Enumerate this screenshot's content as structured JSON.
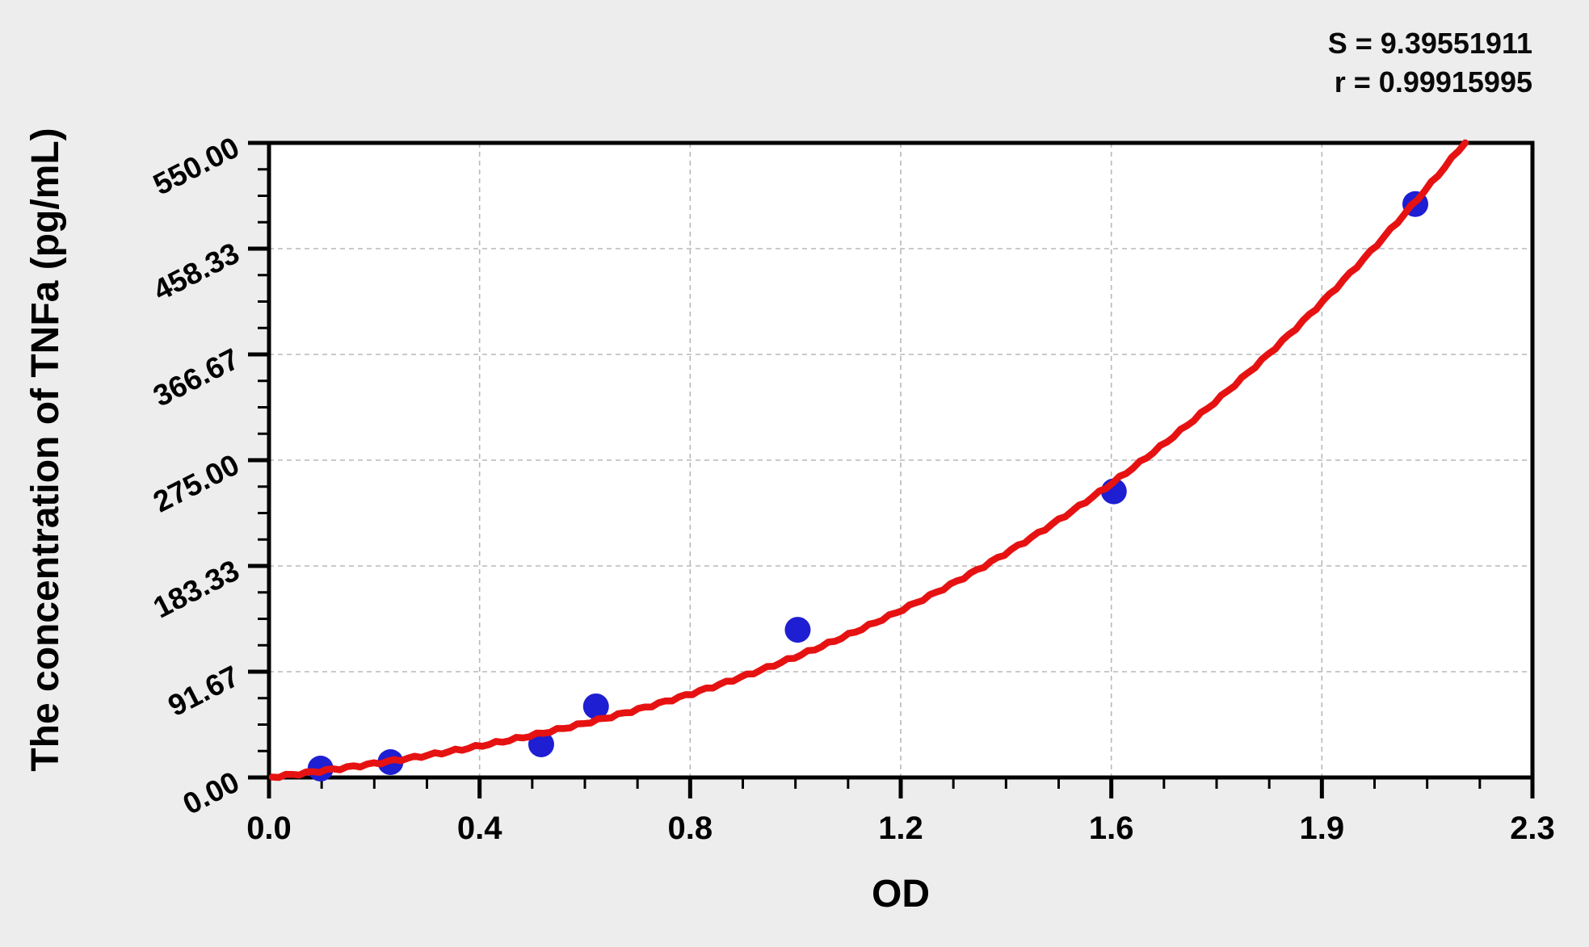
{
  "page": {
    "background": "#ededed"
  },
  "stats": {
    "s": "S = 9.39551911",
    "r": "r = 0.99915995"
  },
  "chart_data": {
    "type": "scatter",
    "title": "",
    "xlabel": "OD",
    "ylabel": "The concentration of TNFa (pg/mL)",
    "xlim": [
      0,
      2.33
    ],
    "ylim": [
      0,
      550
    ],
    "x_tick_labels": [
      "0.0",
      "0.4",
      "0.8",
      "1.2",
      "1.6",
      "1.9",
      "2.3"
    ],
    "y_tick_labels": [
      "0.00",
      "91.67",
      "183.33",
      "275.00",
      "366.67",
      "458.33",
      "550.00"
    ],
    "minor_ticks_between_majors": 3,
    "grid": "dashed gray lines at interior major ticks",
    "legend": "none",
    "points": [
      {
        "od": 0.095,
        "concentration": 7.7
      },
      {
        "od": 0.224,
        "concentration": 13.3
      },
      {
        "od": 0.502,
        "concentration": 28.7
      },
      {
        "od": 0.603,
        "concentration": 61.6
      },
      {
        "od": 0.975,
        "concentration": 128
      },
      {
        "od": 1.558,
        "concentration": 248
      },
      {
        "od": 2.114,
        "concentration": 497
      }
    ],
    "fit_curve": {
      "model": "concentration = 56*OD + 26*OD^2 + 28*OD^3",
      "a": 56,
      "b": 26,
      "c": 28,
      "od_range": [
        0.006,
        2.215
      ]
    },
    "colors": {
      "point": "#1e1ed2",
      "curve": "#e61212",
      "grid": "#b8b8b8",
      "axis": "#000000",
      "plot_background": "#ffffff",
      "page_background": "#ededed",
      "text": "#000000"
    }
  }
}
